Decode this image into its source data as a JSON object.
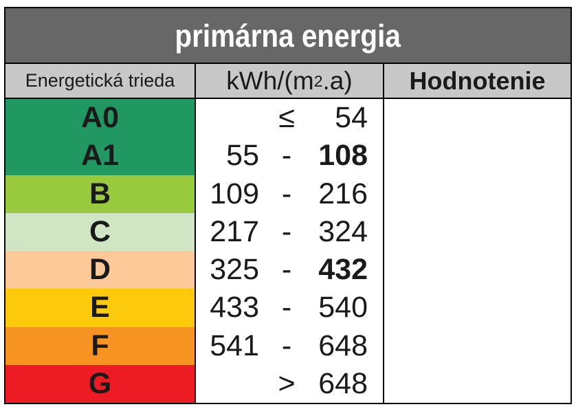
{
  "title": "primárna energia",
  "header": {
    "class_col": "Energetická trieda",
    "unit_prefix": "kWh/(m",
    "unit_sup": "2",
    "unit_suffix": ".a)",
    "rating_col": "Hodnotenie"
  },
  "colors": {
    "title_bg": "#676767",
    "title_text": "#ffffff",
    "header_bg": "#c8c8c8",
    "border": "#000000",
    "text": "#1a1a1a",
    "class_A": "#219862",
    "class_B": "#99c93c",
    "class_C": "#cfe5c3",
    "class_D": "#fdc998",
    "class_E": "#fcc90b",
    "class_F": "#f79421",
    "class_G": "#ed1c24"
  },
  "rows": [
    {
      "label": "A0",
      "bg": "#219862",
      "low": "",
      "sep": "≤",
      "high": "54",
      "high_bold": false
    },
    {
      "label": "A1",
      "bg": "#219862",
      "low": "55",
      "sep": "-",
      "high": "108",
      "high_bold": true
    },
    {
      "label": "B",
      "bg": "#99c93c",
      "low": "109",
      "sep": "-",
      "high": "216",
      "high_bold": false
    },
    {
      "label": "C",
      "bg": "#cfe5c3",
      "low": "217",
      "sep": "-",
      "high": "324",
      "high_bold": false
    },
    {
      "label": "D",
      "bg": "#fdc998",
      "low": "325",
      "sep": "-",
      "high": "432",
      "high_bold": true
    },
    {
      "label": "E",
      "bg": "#fcc90b",
      "low": "433",
      "sep": "-",
      "high": "540",
      "high_bold": false
    },
    {
      "label": "F",
      "bg": "#f79421",
      "low": "541",
      "sep": "-",
      "high": "648",
      "high_bold": false
    },
    {
      "label": "G",
      "bg": "#ed1c24",
      "low": "",
      "sep": ">",
      "high": "648",
      "high_bold": false
    }
  ],
  "rating_cell_value": ""
}
